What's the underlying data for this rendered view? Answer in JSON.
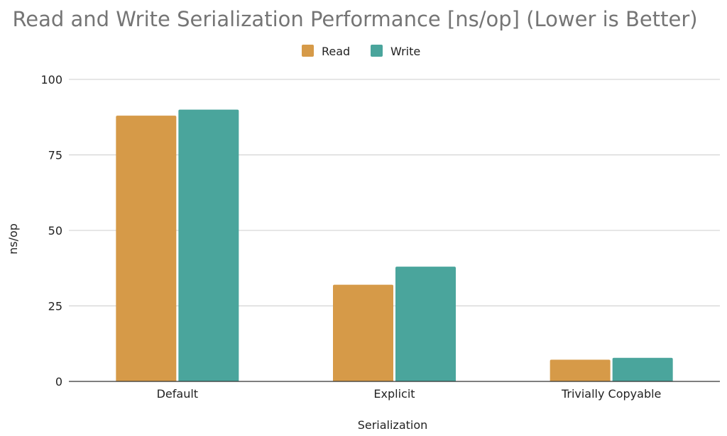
{
  "chart_data": {
    "type": "bar",
    "title": "Read and Write Serialization Performance [ns/op] (Lower is Better)",
    "xlabel": "Serialization",
    "ylabel": "ns/op",
    "categories": [
      "Default",
      "Explicit",
      "Trivially Copyable"
    ],
    "series": [
      {
        "name": "Read",
        "color": "#d69a48",
        "values": [
          88,
          32,
          7.2
        ]
      },
      {
        "name": "Write",
        "color": "#4aa59c",
        "values": [
          90,
          38,
          7.8
        ]
      }
    ],
    "ylim": [
      0,
      100
    ],
    "yticks": [
      0,
      25,
      50,
      75,
      100
    ],
    "grid": true,
    "legend_position": "top-center"
  }
}
